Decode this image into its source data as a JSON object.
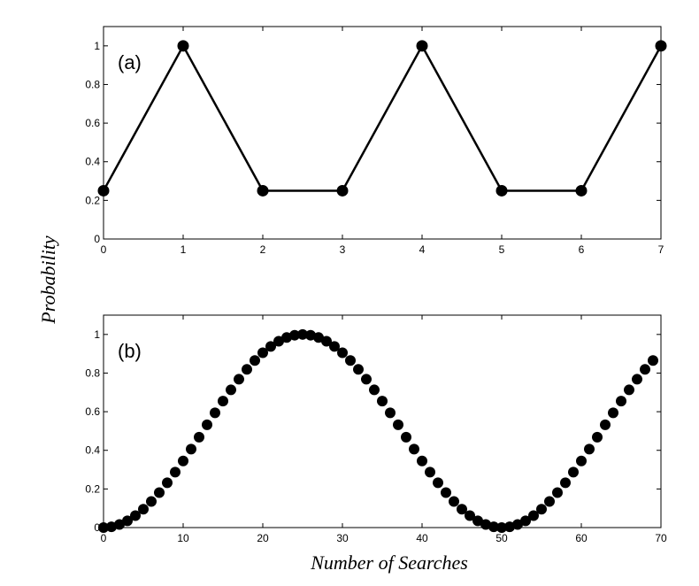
{
  "figure": {
    "ylabel": "Probability",
    "xlabel": "Number of Searches"
  },
  "chart_data": [
    {
      "type": "line",
      "panel_label": "(a)",
      "x": [
        0,
        1,
        2,
        3,
        4,
        5,
        6,
        7
      ],
      "series": [
        {
          "values": [
            0.25,
            1,
            0.25,
            0.25,
            1,
            0.25,
            0.25,
            1
          ]
        }
      ],
      "xlim": [
        0,
        7
      ],
      "ylim": [
        0,
        1.1
      ],
      "xticks": [
        "0",
        "1",
        "2",
        "3",
        "4",
        "5",
        "6",
        "7"
      ],
      "yticks": [
        "0",
        "0.2",
        "0.4",
        "0.6",
        "0.8",
        "1"
      ],
      "line": true,
      "markers": true,
      "grid": false
    },
    {
      "type": "scatter",
      "panel_label": "(b)",
      "x": [
        0,
        1,
        2,
        3,
        4,
        5,
        6,
        7,
        8,
        9,
        10,
        11,
        12,
        13,
        14,
        15,
        16,
        17,
        18,
        19,
        20,
        21,
        22,
        23,
        24,
        25,
        26,
        27,
        28,
        29,
        30,
        31,
        32,
        33,
        34,
        35,
        36,
        37,
        38,
        39,
        40,
        41,
        42,
        43,
        44,
        45,
        46,
        47,
        48,
        49,
        50,
        51,
        52,
        53,
        54,
        55,
        56,
        57,
        58,
        59,
        60,
        61,
        62,
        63,
        64,
        65,
        66,
        67,
        68,
        69
      ],
      "series": [
        {
          "values": [
            0.0,
            0.004,
            0.016,
            0.035,
            0.062,
            0.095,
            0.135,
            0.181,
            0.232,
            0.287,
            0.345,
            0.406,
            0.468,
            0.532,
            0.594,
            0.655,
            0.713,
            0.768,
            0.819,
            0.865,
            0.905,
            0.938,
            0.965,
            0.984,
            0.996,
            1.0,
            0.996,
            0.984,
            0.965,
            0.938,
            0.905,
            0.865,
            0.819,
            0.768,
            0.713,
            0.655,
            0.594,
            0.532,
            0.468,
            0.406,
            0.345,
            0.287,
            0.232,
            0.181,
            0.135,
            0.095,
            0.062,
            0.035,
            0.016,
            0.004,
            0.0,
            0.004,
            0.016,
            0.035,
            0.062,
            0.095,
            0.135,
            0.181,
            0.232,
            0.287,
            0.345,
            0.406,
            0.468,
            0.532,
            0.594,
            0.655,
            0.713,
            0.768,
            0.819,
            0.865
          ]
        }
      ],
      "xlim": [
        0,
        70
      ],
      "ylim": [
        0,
        1.1
      ],
      "xticks": [
        "0",
        "10",
        "20",
        "30",
        "40",
        "50",
        "60",
        "70"
      ],
      "yticks": [
        "0",
        "0.2",
        "0.4",
        "0.6",
        "0.8",
        "1"
      ],
      "line": false,
      "markers": true,
      "grid": false
    }
  ]
}
